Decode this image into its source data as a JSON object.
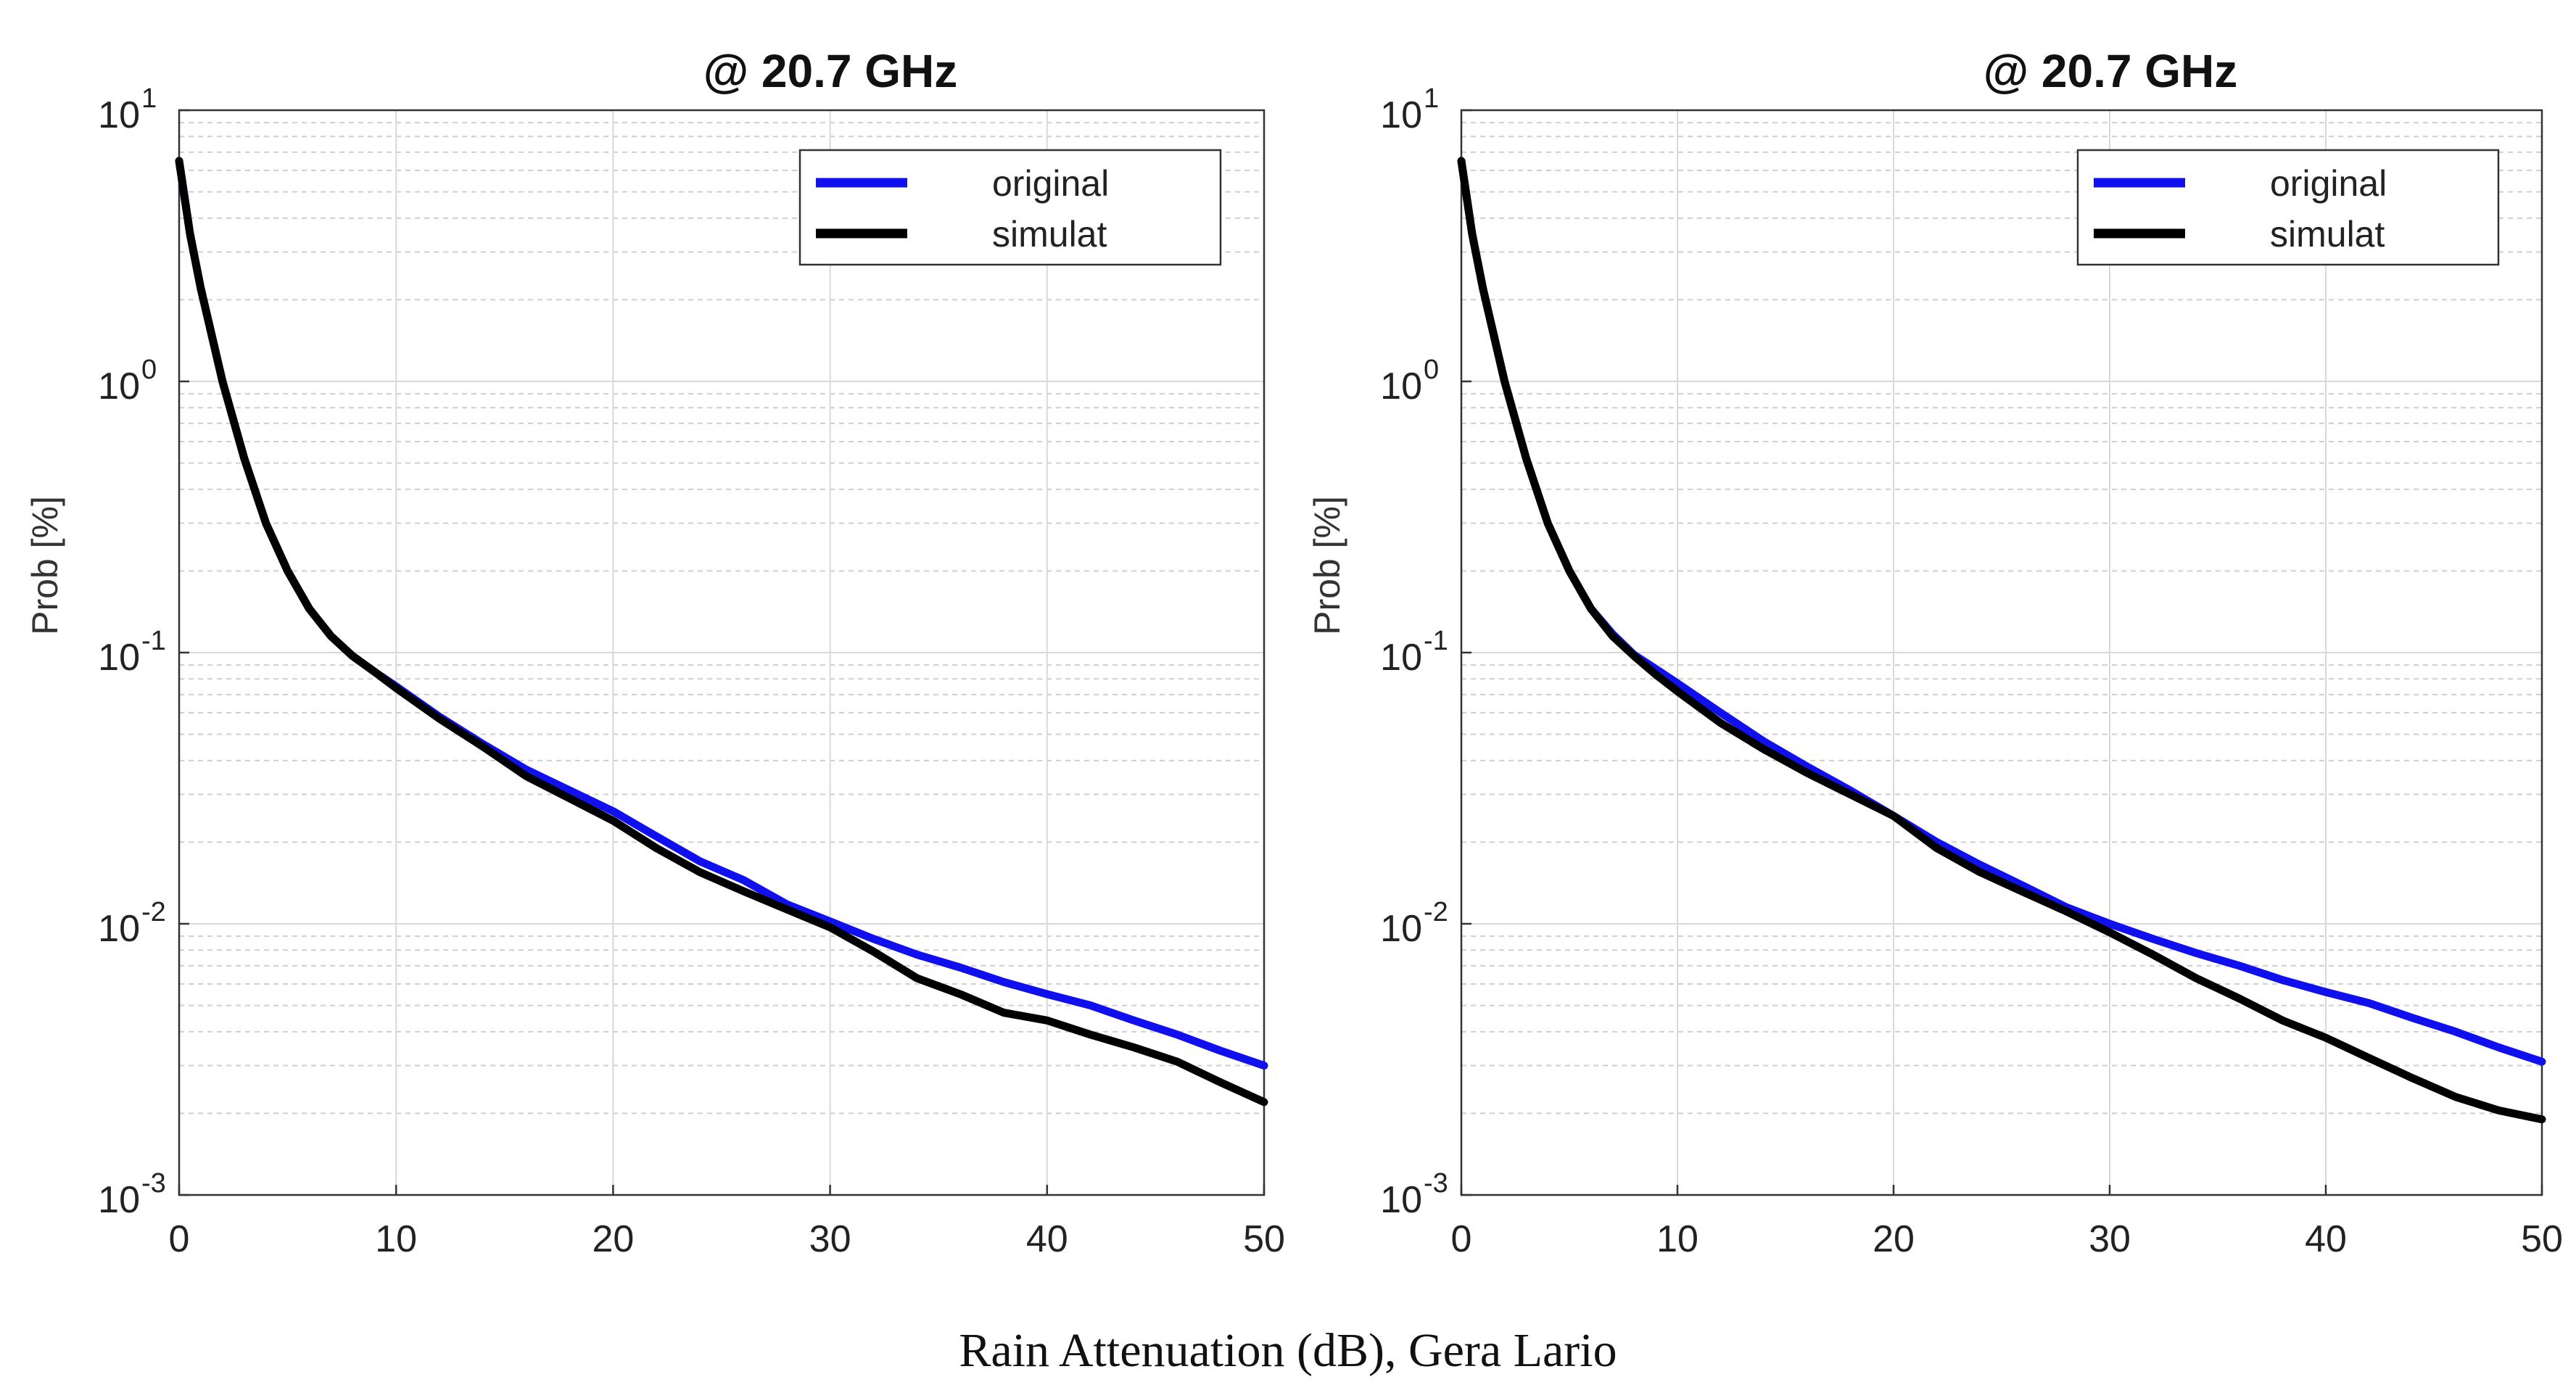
{
  "caption": "Rain Attenuation (dB), Gera Lario",
  "colors": {
    "original": "#1010ee",
    "simulat": "#000000",
    "grid_major": "#d9d9d9",
    "grid_minor": "#cfcfcf"
  },
  "chart_data": [
    {
      "type": "line",
      "title": "@ 20.7 GHz",
      "xlabel": "",
      "ylabel": "Prob        [%]",
      "xscale": "linear",
      "yscale": "log",
      "xlim": [
        0,
        50
      ],
      "ylim": [
        0.001,
        10
      ],
      "xticks": [
        0,
        10,
        20,
        30,
        40,
        50
      ],
      "xtick_labels": [
        "0",
        "10",
        "20",
        "30",
        "40",
        "50"
      ],
      "yticks": [
        0.001,
        0.01,
        0.1,
        1,
        10
      ],
      "ytick_labels": [
        {
          "base": "10",
          "exp": "-3"
        },
        {
          "base": "10",
          "exp": "-2"
        },
        {
          "base": "10",
          "exp": "-1"
        },
        {
          "base": "10",
          "exp": "0"
        },
        {
          "base": "10",
          "exp": "1"
        }
      ],
      "grid": true,
      "legend_position": "top-right",
      "series": [
        {
          "name": "original",
          "x": [
            0,
            0.5,
            1,
            2,
            3,
            4,
            5,
            6,
            7,
            8,
            9,
            10,
            12,
            14,
            16,
            18,
            20,
            22,
            24,
            26,
            28,
            30,
            32,
            34,
            36,
            38,
            40,
            42,
            44,
            46,
            48,
            50
          ],
          "y": [
            6.5,
            3.5,
            2.2,
            1.0,
            0.52,
            0.3,
            0.2,
            0.145,
            0.115,
            0.097,
            0.085,
            0.075,
            0.058,
            0.046,
            0.037,
            0.031,
            0.026,
            0.021,
            0.017,
            0.0145,
            0.0118,
            0.0102,
            0.0088,
            0.0077,
            0.0069,
            0.0061,
            0.0055,
            0.005,
            0.0044,
            0.0039,
            0.0034,
            0.003
          ]
        },
        {
          "name": "simulat",
          "x": [
            0,
            0.5,
            1,
            2,
            3,
            4,
            5,
            6,
            7,
            8,
            9,
            10,
            12,
            14,
            16,
            18,
            20,
            22,
            24,
            26,
            28,
            30,
            32,
            34,
            36,
            38,
            40,
            42,
            44,
            46,
            48,
            50
          ],
          "y": [
            6.5,
            3.5,
            2.2,
            1.0,
            0.52,
            0.3,
            0.2,
            0.145,
            0.115,
            0.097,
            0.085,
            0.074,
            0.057,
            0.045,
            0.035,
            0.029,
            0.024,
            0.019,
            0.0155,
            0.0132,
            0.0113,
            0.0097,
            0.0079,
            0.0063,
            0.0055,
            0.0047,
            0.0044,
            0.0039,
            0.0035,
            0.0031,
            0.0026,
            0.0022
          ]
        }
      ]
    },
    {
      "type": "line",
      "title": "@ 20.7 GHz",
      "xlabel": "",
      "ylabel": "Prob        [%]",
      "xscale": "linear",
      "yscale": "log",
      "xlim": [
        0,
        50
      ],
      "ylim": [
        0.001,
        10
      ],
      "xticks": [
        0,
        10,
        20,
        30,
        40,
        50
      ],
      "xtick_labels": [
        "0",
        "10",
        "20",
        "30",
        "40",
        "50"
      ],
      "yticks": [
        0.001,
        0.01,
        0.1,
        1,
        10
      ],
      "ytick_labels": [
        {
          "base": "10",
          "exp": "-3"
        },
        {
          "base": "10",
          "exp": "-2"
        },
        {
          "base": "10",
          "exp": "-1"
        },
        {
          "base": "10",
          "exp": "0"
        },
        {
          "base": "10",
          "exp": "1"
        }
      ],
      "grid": true,
      "legend_position": "top-right",
      "series": [
        {
          "name": "original",
          "x": [
            0,
            0.5,
            1,
            2,
            3,
            4,
            5,
            6,
            7,
            8,
            9,
            10,
            12,
            14,
            16,
            18,
            20,
            22,
            24,
            26,
            28,
            30,
            32,
            34,
            36,
            38,
            40,
            42,
            44,
            46,
            48,
            50
          ],
          "y": [
            6.5,
            3.5,
            2.2,
            1.0,
            0.52,
            0.3,
            0.2,
            0.145,
            0.117,
            0.098,
            0.087,
            0.077,
            0.06,
            0.047,
            0.038,
            0.031,
            0.025,
            0.02,
            0.0165,
            0.0138,
            0.0115,
            0.01,
            0.0088,
            0.0078,
            0.007,
            0.0062,
            0.0056,
            0.0051,
            0.0045,
            0.004,
            0.0035,
            0.0031
          ]
        },
        {
          "name": "simulat",
          "x": [
            0,
            0.5,
            1,
            2,
            3,
            4,
            5,
            6,
            7,
            8,
            9,
            10,
            12,
            14,
            16,
            18,
            20,
            22,
            24,
            26,
            28,
            30,
            32,
            34,
            36,
            38,
            40,
            42,
            44,
            46,
            48,
            50
          ],
          "y": [
            6.5,
            3.5,
            2.2,
            1.0,
            0.52,
            0.3,
            0.2,
            0.145,
            0.115,
            0.097,
            0.083,
            0.072,
            0.055,
            0.044,
            0.036,
            0.03,
            0.025,
            0.019,
            0.0155,
            0.0131,
            0.0111,
            0.0093,
            0.0077,
            0.0063,
            0.0053,
            0.0044,
            0.0038,
            0.0032,
            0.0027,
            0.0023,
            0.00205,
            0.0019
          ]
        }
      ]
    }
  ]
}
